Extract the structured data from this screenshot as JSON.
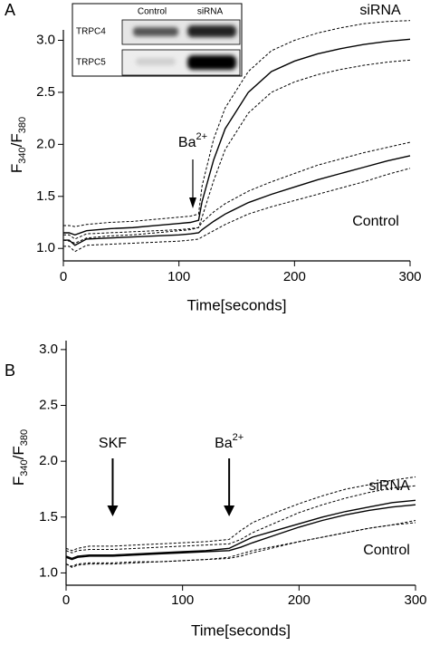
{
  "chart_data": [
    {
      "type": "line",
      "panel": "A",
      "ylabel": [
        "F",
        "340",
        "/F",
        "380"
      ],
      "xlabel": "Time[seconds]",
      "xlim": [
        0,
        300
      ],
      "xticks": [
        0,
        100,
        200,
        300
      ],
      "ylim": [
        0.88,
        3.1
      ],
      "yticks": [
        {
          "value": 1,
          "label": "1.0"
        },
        1.5,
        {
          "value": 2,
          "label": "2.0"
        },
        2.5,
        {
          "value": 3,
          "label": "3.0"
        }
      ],
      "x": [
        0,
        5,
        10,
        20,
        40,
        60,
        80,
        100,
        110,
        117,
        120,
        130,
        140,
        160,
        180,
        200,
        220,
        240,
        260,
        280,
        300
      ],
      "series": [
        {
          "name": "siRNA",
          "color": "#000000",
          "dashed": false,
          "values": [
            1.15,
            1.15,
            1.13,
            1.17,
            1.19,
            1.2,
            1.22,
            1.24,
            1.25,
            1.27,
            1.45,
            1.85,
            2.15,
            2.5,
            2.7,
            2.8,
            2.87,
            2.92,
            2.96,
            2.99,
            3.01
          ]
        },
        {
          "color": "#000000",
          "dashed": true,
          "values": [
            1.22,
            1.22,
            1.21,
            1.23,
            1.25,
            1.26,
            1.28,
            1.3,
            1.31,
            1.33,
            1.6,
            2.05,
            2.35,
            2.7,
            2.9,
            3.0,
            3.07,
            3.12,
            3.16,
            3.18,
            3.19
          ]
        },
        {
          "color": "#000000",
          "dashed": true,
          "values": [
            1.08,
            1.07,
            1.05,
            1.1,
            1.12,
            1.13,
            1.15,
            1.17,
            1.18,
            1.2,
            1.3,
            1.65,
            1.95,
            2.3,
            2.5,
            2.6,
            2.67,
            2.72,
            2.76,
            2.79,
            2.81
          ]
        },
        {
          "name": "Control",
          "color": "#000000",
          "dashed": false,
          "values": [
            1.08,
            1.08,
            1.03,
            1.09,
            1.1,
            1.11,
            1.12,
            1.13,
            1.14,
            1.15,
            1.18,
            1.26,
            1.33,
            1.44,
            1.52,
            1.59,
            1.66,
            1.72,
            1.78,
            1.84,
            1.89
          ]
        },
        {
          "color": "#000000",
          "dashed": true,
          "values": [
            1.13,
            1.13,
            1.09,
            1.14,
            1.15,
            1.16,
            1.17,
            1.18,
            1.19,
            1.2,
            1.25,
            1.35,
            1.43,
            1.55,
            1.64,
            1.72,
            1.8,
            1.86,
            1.92,
            1.97,
            2.02
          ]
        },
        {
          "color": "#000000",
          "dashed": true,
          "values": [
            1.02,
            1.02,
            0.97,
            1.03,
            1.04,
            1.05,
            1.06,
            1.07,
            1.08,
            1.09,
            1.11,
            1.17,
            1.23,
            1.33,
            1.4,
            1.46,
            1.52,
            1.58,
            1.64,
            1.71,
            1.77
          ]
        }
      ],
      "annotations": [
        {
          "text": [
            "Ba",
            "2+"
          ],
          "x": 112
        }
      ],
      "inset": {
        "columns": [
          "Control",
          "siRNA"
        ],
        "rows": [
          "TRPC4",
          "TRPC5"
        ]
      }
    },
    {
      "type": "line",
      "panel": "B",
      "ylabel": [
        "F",
        "340",
        "/F",
        "380"
      ],
      "xlabel": "Time[seconds]",
      "xlim": [
        0,
        300
      ],
      "xticks": [
        0,
        100,
        200,
        300
      ],
      "ylim": [
        0.89,
        3.08
      ],
      "yticks": [
        {
          "value": 1,
          "label": "1.0"
        },
        1.5,
        {
          "value": 2,
          "label": "2.0"
        },
        2.5,
        {
          "value": 3,
          "label": "3.0"
        }
      ],
      "x": [
        0,
        5,
        10,
        20,
        40,
        60,
        80,
        100,
        120,
        140,
        150,
        160,
        180,
        200,
        220,
        240,
        260,
        280,
        300
      ],
      "series": [
        {
          "name": "siRNA",
          "color": "#000000",
          "dashed": false,
          "values": [
            1.15,
            1.13,
            1.15,
            1.16,
            1.16,
            1.17,
            1.18,
            1.19,
            1.2,
            1.22,
            1.27,
            1.32,
            1.38,
            1.44,
            1.5,
            1.55,
            1.59,
            1.63,
            1.65
          ]
        },
        {
          "color": "#000000",
          "dashed": true,
          "values": [
            1.22,
            1.2,
            1.22,
            1.24,
            1.24,
            1.25,
            1.26,
            1.27,
            1.28,
            1.3,
            1.38,
            1.45,
            1.54,
            1.62,
            1.69,
            1.75,
            1.79,
            1.83,
            1.86
          ]
        },
        {
          "color": "#000000",
          "dashed": true,
          "values": [
            1.08,
            1.06,
            1.08,
            1.09,
            1.09,
            1.1,
            1.1,
            1.11,
            1.12,
            1.14,
            1.17,
            1.2,
            1.24,
            1.28,
            1.32,
            1.36,
            1.4,
            1.43,
            1.45
          ]
        },
        {
          "name": "Control",
          "color": "#000000",
          "dashed": false,
          "values": [
            1.14,
            1.12,
            1.14,
            1.15,
            1.15,
            1.16,
            1.17,
            1.18,
            1.19,
            1.2,
            1.23,
            1.27,
            1.34,
            1.41,
            1.47,
            1.52,
            1.56,
            1.59,
            1.61
          ]
        },
        {
          "color": "#000000",
          "dashed": true,
          "values": [
            1.2,
            1.18,
            1.2,
            1.21,
            1.21,
            1.22,
            1.23,
            1.24,
            1.25,
            1.26,
            1.3,
            1.36,
            1.45,
            1.54,
            1.61,
            1.67,
            1.72,
            1.76,
            1.78
          ]
        },
        {
          "color": "#000000",
          "dashed": true,
          "values": [
            1.08,
            1.05,
            1.07,
            1.08,
            1.08,
            1.09,
            1.1,
            1.11,
            1.12,
            1.13,
            1.15,
            1.18,
            1.23,
            1.28,
            1.32,
            1.36,
            1.4,
            1.43,
            1.47
          ]
        }
      ],
      "annotations": [
        {
          "text": [
            "SKF"
          ],
          "x": 40
        },
        {
          "text": [
            "Ba",
            "2+"
          ],
          "x": 140
        }
      ]
    }
  ]
}
